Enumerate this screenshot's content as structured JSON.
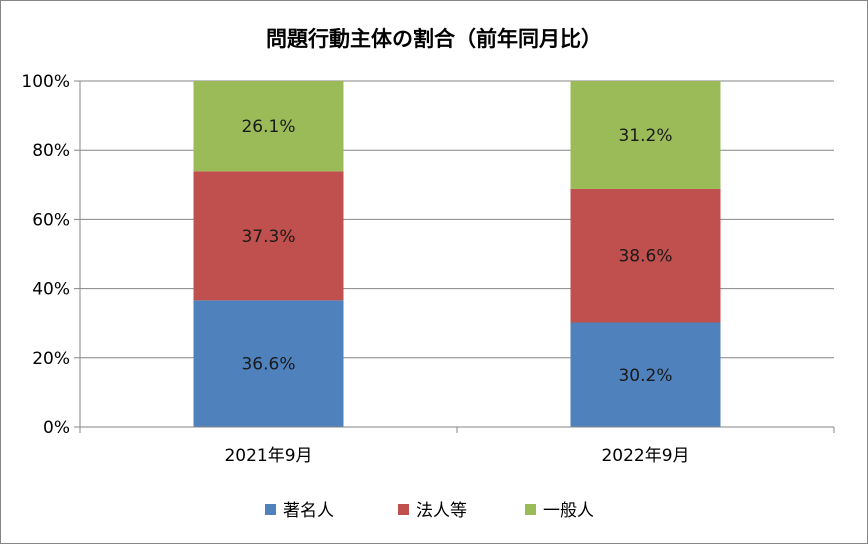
{
  "chart_data": {
    "type": "bar",
    "stacked": true,
    "title": "問題行動主体の割合（前年同月比）",
    "xlabel": "",
    "ylabel": "",
    "categories": [
      "2021年9月",
      "2022年9月"
    ],
    "series": [
      {
        "name": "著名人",
        "color": "#4F81BD",
        "values": [
          36.6,
          30.2
        ],
        "labels": [
          "36.6%",
          "30.2%"
        ]
      },
      {
        "name": "法人等",
        "color": "#C0504D",
        "values": [
          37.3,
          38.6
        ],
        "labels": [
          "37.3%",
          "38.6%"
        ]
      },
      {
        "name": "一般人",
        "color": "#9BBB59",
        "values": [
          26.1,
          31.2
        ],
        "labels": [
          "26.1%",
          "31.2%"
        ]
      }
    ],
    "ylim": [
      0,
      100
    ],
    "yticks": [
      0,
      20,
      40,
      60,
      80,
      100
    ],
    "ytick_labels": [
      "0%",
      "20%",
      "40%",
      "60%",
      "80%",
      "100%"
    ],
    "grid": true,
    "legend_position": "bottom",
    "colors": {
      "gridline": "#868686",
      "axis": "#868686",
      "border": "#868686"
    }
  }
}
